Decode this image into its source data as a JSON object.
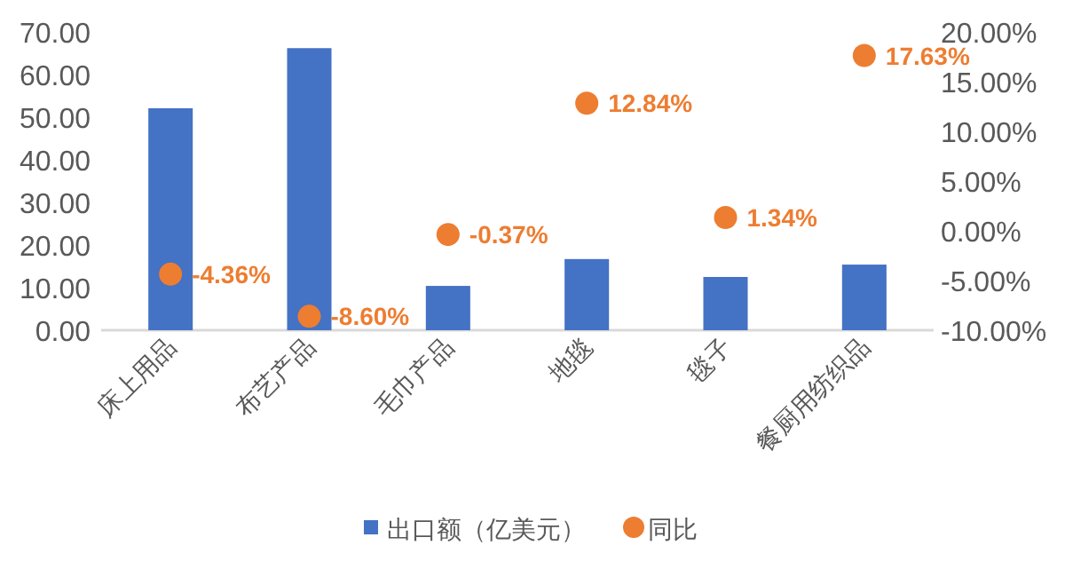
{
  "chart_data": {
    "type": "bar",
    "categories": [
      "床上用品",
      "布艺产品",
      "毛巾产品",
      "地毯",
      "毯子",
      "餐厨用纺织品"
    ],
    "series": [
      {
        "name": "出口额（亿美元）",
        "color": "#4472c4",
        "values": [
          52.1,
          66.2,
          10.4,
          16.7,
          12.5,
          15.4
        ]
      },
      {
        "name": "同比",
        "type": "scatter",
        "axis": "y2",
        "color": "#ed7d31",
        "marker": "circle",
        "values": [
          -4.36,
          -8.6,
          -0.37,
          12.84,
          1.34,
          17.63
        ],
        "value_labels": [
          "-4.36%",
          "-8.60%",
          "-0.37%",
          "12.84%",
          "1.34%",
          "17.63%"
        ]
      }
    ],
    "ylim": [
      0,
      70
    ],
    "yticks": [
      {
        "value": 0,
        "label": "0.00"
      },
      {
        "value": 10,
        "label": "10.00"
      },
      {
        "value": 20,
        "label": "20.00"
      },
      {
        "value": 30,
        "label": "30.00"
      },
      {
        "value": 40,
        "label": "40.00"
      },
      {
        "value": 50,
        "label": "50.00"
      },
      {
        "value": 60,
        "label": "60.00"
      },
      {
        "value": 70,
        "label": "70.00"
      }
    ],
    "y2lim": [
      -10,
      20
    ],
    "y2ticks": [
      {
        "value": -10,
        "label": "-10.00%"
      },
      {
        "value": -5,
        "label": "-5.00%"
      },
      {
        "value": 0,
        "label": "0.00%"
      },
      {
        "value": 5,
        "label": "5.00%"
      },
      {
        "value": 10,
        "label": "10.00%"
      },
      {
        "value": 15,
        "label": "15.00%"
      },
      {
        "value": 20,
        "label": "20.00%"
      }
    ],
    "grid": false,
    "legend": "bottom"
  }
}
